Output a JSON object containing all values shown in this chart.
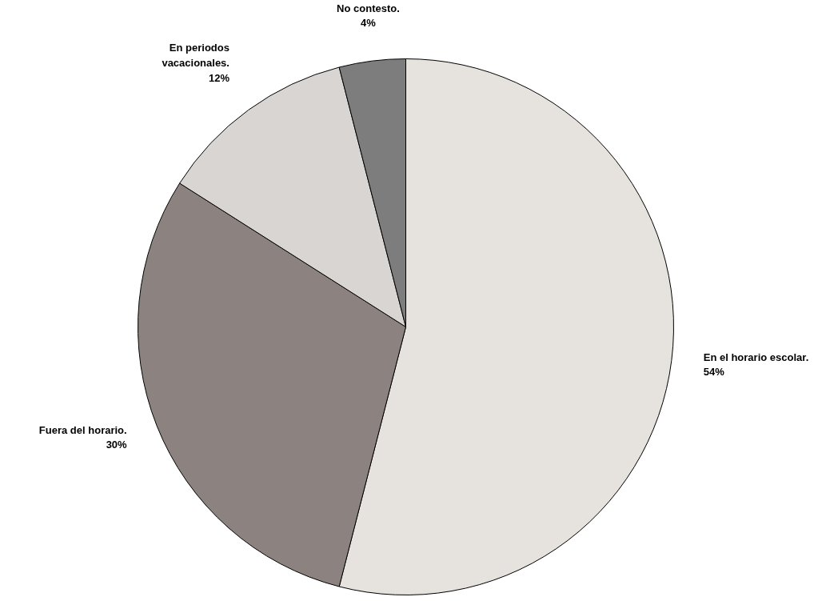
{
  "chart_data": {
    "type": "pie",
    "categories": [
      "En el horario escolar.",
      "Fuera del horario.",
      "En periodos vacacionales.",
      "No contesto."
    ],
    "values": [
      54,
      30,
      12,
      4
    ],
    "colors": [
      "#e6e2de",
      "#8c8380",
      "#d9d5d3",
      "#7d7d7d"
    ],
    "value_labels": [
      "54%",
      "30%",
      "12%",
      "4%"
    ]
  }
}
